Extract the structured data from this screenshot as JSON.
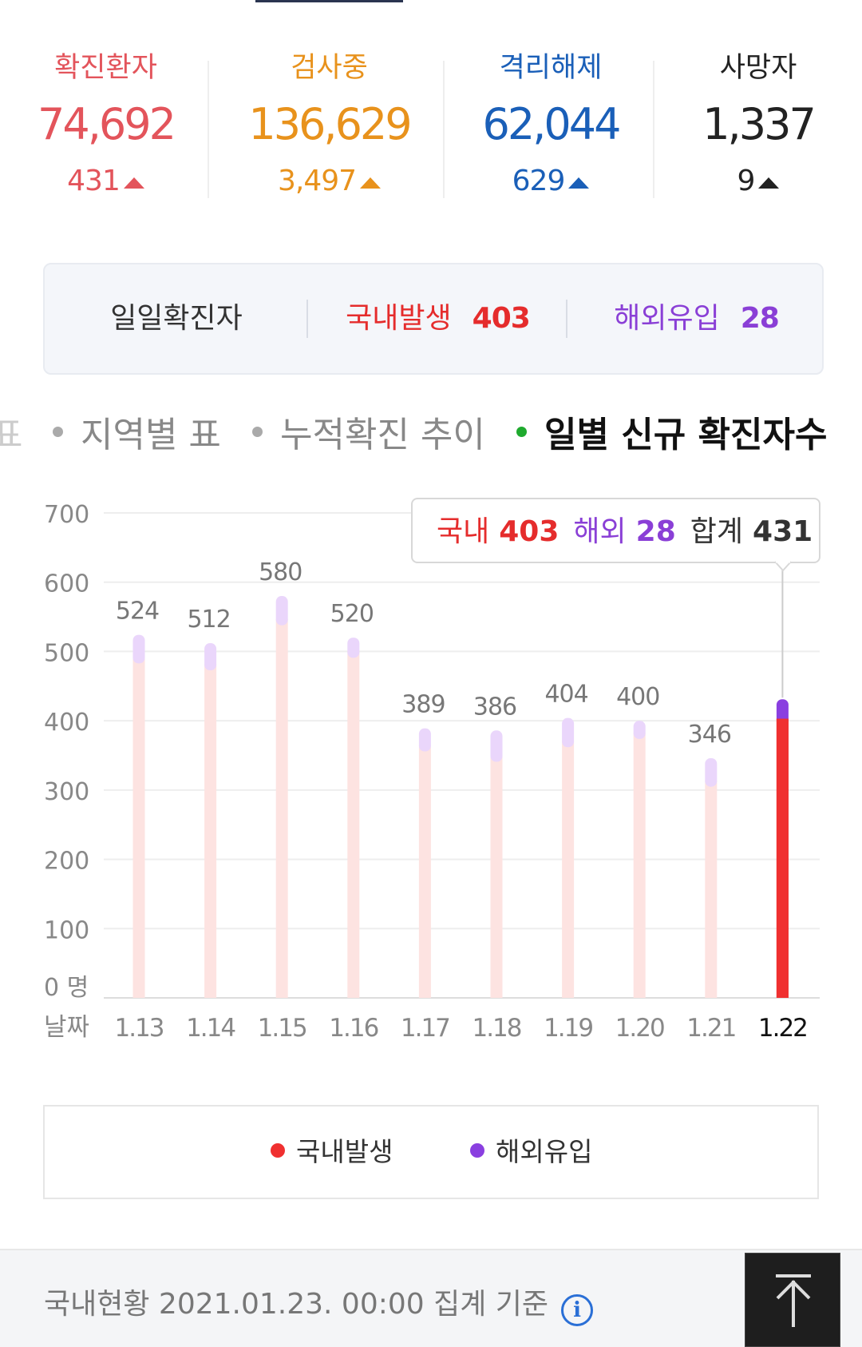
{
  "stats": [
    {
      "label": "확진환자",
      "value": "74,692",
      "delta": "431"
    },
    {
      "label": "검사중",
      "value": "136,629",
      "delta": "3,497"
    },
    {
      "label": "격리해제",
      "value": "62,044",
      "delta": "629"
    },
    {
      "label": "사망자",
      "value": "1,337",
      "delta": "9"
    }
  ],
  "daily": {
    "label": "일일확진자",
    "domestic_label": "국내발생",
    "domestic_value": "403",
    "overseas_label": "해외유입",
    "overseas_value": "28"
  },
  "tabs": {
    "partial": "표",
    "items": [
      "지역별 표",
      "누적확진 추이",
      "일별 신규 확진자수"
    ],
    "active_index": 2
  },
  "chart_data": {
    "type": "bar",
    "stacked": true,
    "categories": [
      "1.13",
      "1.14",
      "1.15",
      "1.16",
      "1.17",
      "1.18",
      "1.19",
      "1.20",
      "1.21",
      "1.22"
    ],
    "series": [
      {
        "name": "국내발생",
        "color": "#f03030",
        "values": [
          492,
          482,
          547,
          500,
          365,
          350,
          371,
          383,
          314,
          403
        ]
      },
      {
        "name": "해외유입",
        "color": "#8a3fe0",
        "values": [
          32,
          30,
          33,
          20,
          24,
          36,
          33,
          17,
          32,
          28
        ]
      }
    ],
    "totals": [
      "524",
      "512",
      "580",
      "520",
      "389",
      "386",
      "404",
      "400",
      "346",
      ""
    ],
    "yticks": [
      "0 명",
      "100",
      "200",
      "300",
      "400",
      "500",
      "600",
      "700"
    ],
    "ylim": [
      0,
      700
    ],
    "xlabel": "날짜",
    "highlight_index": 9,
    "tooltip": {
      "domestic_label": "국내",
      "domestic_value": "403",
      "overseas_label": "해외",
      "overseas_value": "28",
      "total_label": "합계",
      "total_value": "431"
    },
    "grid": true
  },
  "legend": {
    "items": [
      {
        "label": "국내발생",
        "color": "#f03030"
      },
      {
        "label": "해외유입",
        "color": "#8a3fe0"
      }
    ]
  },
  "footer": {
    "text": "국내현황 2021.01.23. 00:00 집계 기준",
    "info_glyph": "i"
  },
  "colors": {
    "confirmed": "#e3545b",
    "testing": "#e8921c",
    "released": "#1a5fb8",
    "deaths": "#222222"
  }
}
